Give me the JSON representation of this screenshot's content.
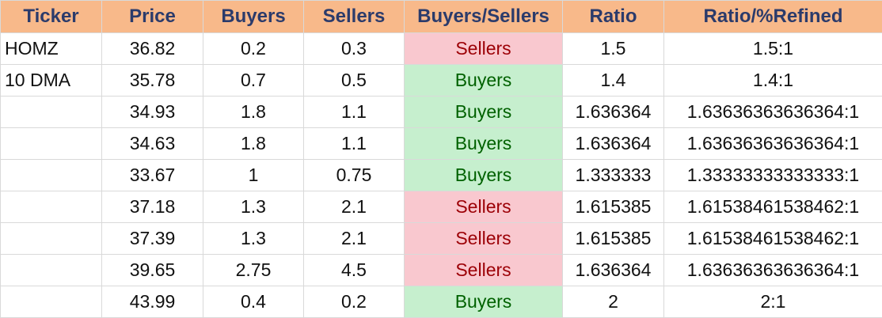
{
  "headers": [
    "Ticker",
    "Price",
    "Buyers",
    "Sellers",
    "Buyers/Sellers",
    "Ratio",
    "Ratio/%Refined"
  ],
  "rows": [
    {
      "ticker": "HOMZ",
      "price": "36.82",
      "buyers": "0.2",
      "sellers": "0.3",
      "side": "Sellers",
      "ratio": "1.5",
      "refined": "1.5:1"
    },
    {
      "ticker": "10 DMA",
      "price": "35.78",
      "buyers": "0.7",
      "sellers": "0.5",
      "side": "Buyers",
      "ratio": "1.4",
      "refined": "1.4:1"
    },
    {
      "ticker": "",
      "price": "34.93",
      "buyers": "1.8",
      "sellers": "1.1",
      "side": "Buyers",
      "ratio": "1.636364",
      "refined": "1.63636363636364:1"
    },
    {
      "ticker": "",
      "price": "34.63",
      "buyers": "1.8",
      "sellers": "1.1",
      "side": "Buyers",
      "ratio": "1.636364",
      "refined": "1.63636363636364:1"
    },
    {
      "ticker": "",
      "price": "33.67",
      "buyers": "1",
      "sellers": "0.75",
      "side": "Buyers",
      "ratio": "1.333333",
      "refined": "1.33333333333333:1"
    },
    {
      "ticker": "",
      "price": "37.18",
      "buyers": "1.3",
      "sellers": "2.1",
      "side": "Sellers",
      "ratio": "1.615385",
      "refined": "1.61538461538462:1"
    },
    {
      "ticker": "",
      "price": "37.39",
      "buyers": "1.3",
      "sellers": "2.1",
      "side": "Sellers",
      "ratio": "1.615385",
      "refined": "1.61538461538462:1"
    },
    {
      "ticker": "",
      "price": "39.65",
      "buyers": "2.75",
      "sellers": "4.5",
      "side": "Sellers",
      "ratio": "1.636364",
      "refined": "1.63636363636364:1"
    },
    {
      "ticker": "",
      "price": "43.99",
      "buyers": "0.4",
      "sellers": "0.2",
      "side": "Buyers",
      "ratio": "2",
      "refined": "2:1"
    }
  ],
  "colors": {
    "header_bg": "#f8b98a",
    "header_text": "#2b3b6b",
    "sellers_bg": "#f9c8cf",
    "sellers_text": "#9c0006",
    "buyers_bg": "#c6efce",
    "buyers_text": "#006100"
  }
}
